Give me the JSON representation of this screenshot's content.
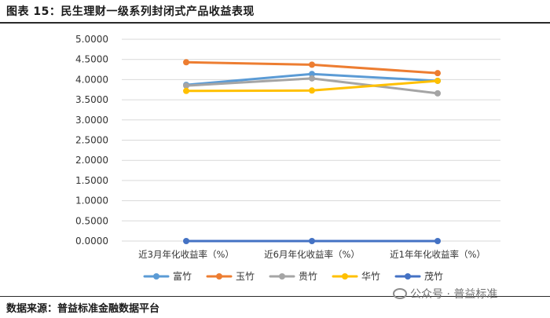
{
  "header": {
    "title": "图表 15：民生理财一级系列封闭式产品收益表现"
  },
  "footer": {
    "source": "数据来源：普益标准金融数据平台",
    "watermark": "公众号 · 普益标准"
  },
  "chart_data": {
    "type": "line",
    "title": "",
    "xlabel": "",
    "ylabel": "",
    "categories": [
      "近3月年化收益率（%）",
      "近6月年化收益率（%）",
      "近1年年化收益率（%）"
    ],
    "ylim": [
      0,
      5
    ],
    "yticks": [
      "0.0000",
      "0.5000",
      "1.0000",
      "1.5000",
      "2.0000",
      "2.5000",
      "3.0000",
      "3.5000",
      "4.0000",
      "4.5000",
      "5.0000"
    ],
    "grid": true,
    "legend_position": "bottom",
    "series": [
      {
        "name": "富竹",
        "color": "#5B9BD5",
        "values": [
          3.87,
          4.14,
          3.97
        ]
      },
      {
        "name": "玉竹",
        "color": "#ED7D31",
        "values": [
          4.43,
          4.37,
          4.16
        ]
      },
      {
        "name": "贵竹",
        "color": "#A5A5A5",
        "values": [
          3.85,
          4.03,
          3.66
        ]
      },
      {
        "name": "华竹",
        "color": "#FFC000",
        "values": [
          3.72,
          3.73,
          3.97
        ]
      },
      {
        "name": "茂竹",
        "color": "#4472C4",
        "values": [
          0.0,
          0.0,
          0.0
        ]
      }
    ]
  }
}
